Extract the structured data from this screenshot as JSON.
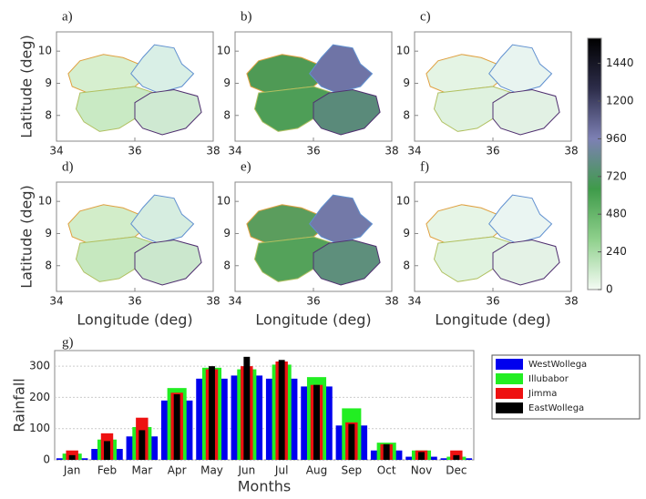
{
  "chart_data": [
    {
      "type": "map",
      "title": "a)",
      "ylabel": "Latitude (deg)",
      "xlim": [
        34,
        38
      ],
      "ylim": [
        7.2,
        10.6
      ],
      "xticks": [
        34,
        36,
        38
      ],
      "yticks": [
        8,
        9,
        10
      ],
      "colors": [
        "#d6efcf",
        "#c9eac4",
        "#d9efe6",
        "#cfe9d2"
      ]
    },
    {
      "type": "map",
      "title": "b)",
      "xlim": [
        34,
        38
      ],
      "ylim": [
        7.2,
        10.6
      ],
      "xticks": [
        34,
        36,
        38
      ],
      "yticks": [
        8,
        9,
        10
      ],
      "colors": [
        "#4f9a55",
        "#4e9e57",
        "#6f74a6",
        "#5a8a7a"
      ]
    },
    {
      "type": "map",
      "title": "c)",
      "xlim": [
        34,
        38
      ],
      "ylim": [
        7.2,
        10.6
      ],
      "xticks": [
        34,
        36,
        38
      ],
      "yticks": [
        8,
        9,
        10
      ],
      "colors": [
        "#e4f4e4",
        "#dff2df",
        "#e8f4f0",
        "#e2f1e4"
      ]
    },
    {
      "type": "map",
      "title": "d)",
      "ylabel": "Latitude (deg)",
      "xlabel": "Longitude (deg)",
      "xlim": [
        34,
        38
      ],
      "ylim": [
        7.2,
        10.6
      ],
      "xticks": [
        34,
        36,
        38
      ],
      "yticks": [
        8,
        9,
        10
      ],
      "colors": [
        "#d2edc9",
        "#c6e8bf",
        "#d6ede0",
        "#cbe7cd"
      ]
    },
    {
      "type": "map",
      "title": "e)",
      "xlabel": "Longitude (deg)",
      "xlim": [
        34,
        38
      ],
      "ylim": [
        7.2,
        10.6
      ],
      "xticks": [
        34,
        36,
        38
      ],
      "yticks": [
        8,
        9,
        10
      ],
      "colors": [
        "#5b9d5d",
        "#54a25a",
        "#7379a8",
        "#5e8f7c"
      ]
    },
    {
      "type": "map",
      "title": "f)",
      "xlabel": "Longitude (deg)",
      "xlim": [
        34,
        38
      ],
      "ylim": [
        7.2,
        10.6
      ],
      "xticks": [
        34,
        36,
        38
      ],
      "yticks": [
        8,
        9,
        10
      ],
      "colors": [
        "#e6f5e6",
        "#e0f3df",
        "#eaf5f2",
        "#e4f2e6"
      ]
    },
    {
      "type": "colorbar",
      "zlim": [
        0,
        1600
      ],
      "zticks": [
        0,
        240,
        480,
        720,
        960,
        1200,
        1440
      ],
      "colors": [
        "#f4fbf4",
        "#8fd08c",
        "#3f9b4a",
        "#7d80b4",
        "#2d2d4a",
        "#000000"
      ]
    },
    {
      "type": "bar",
      "title": "g)",
      "xlabel": "Months",
      "ylabel": "Rainfall",
      "categories": [
        "Jan",
        "Feb",
        "Mar",
        "Apr",
        "May",
        "Jun",
        "Jul",
        "Aug",
        "Sep",
        "Oct",
        "Nov",
        "Dec"
      ],
      "series": [
        {
          "name": "WestWollega",
          "color": "#0000ee",
          "values": [
            5,
            35,
            75,
            190,
            260,
            270,
            260,
            235,
            110,
            30,
            10,
            5
          ]
        },
        {
          "name": "Illubabor",
          "color": "#22ee22",
          "values": [
            20,
            65,
            105,
            230,
            295,
            290,
            305,
            265,
            165,
            55,
            30,
            10
          ]
        },
        {
          "name": "Jimma",
          "color": "#ee1111",
          "values": [
            30,
            85,
            135,
            215,
            290,
            300,
            315,
            240,
            120,
            50,
            30,
            30
          ]
        },
        {
          "name": "EastWollega",
          "color": "#000000",
          "values": [
            15,
            60,
            95,
            210,
            300,
            330,
            320,
            240,
            115,
            50,
            25,
            15
          ]
        }
      ],
      "ylim": [
        0,
        350
      ],
      "yticks": [
        0,
        100,
        200,
        300
      ],
      "legend": "outside right"
    }
  ]
}
